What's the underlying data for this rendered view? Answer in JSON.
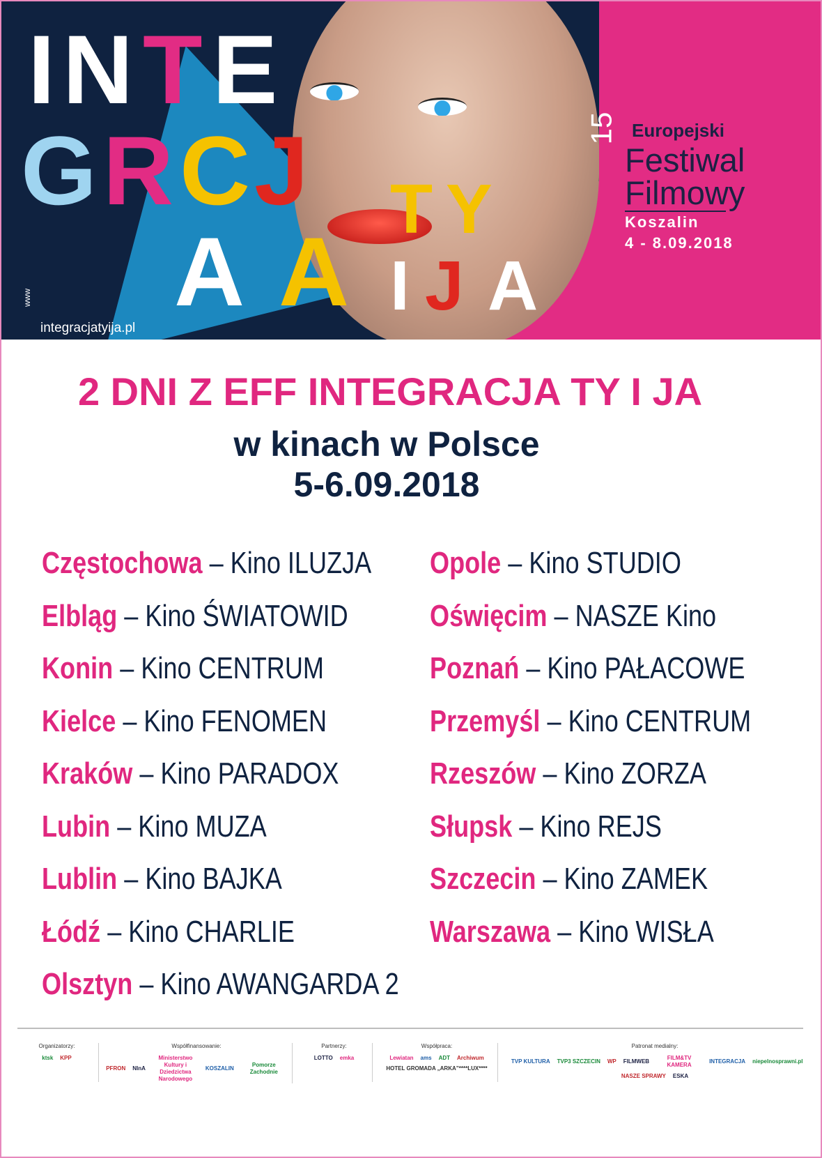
{
  "banner": {
    "letters": [
      "I",
      "N",
      "T",
      "E",
      "G",
      "R",
      "A",
      "C",
      "J",
      "A",
      "T",
      "Y",
      "I",
      "J",
      "A"
    ],
    "url_prefix": "www",
    "url": "integracjatyija.pl",
    "festival": {
      "edition": "15",
      "line1": "Europejski",
      "line2": "Festiwal",
      "line3": "Filmowy",
      "city": "Koszalin",
      "dates": "4 - 8.09.2018"
    },
    "colors": {
      "navy": "#0f2240",
      "pink": "#e22c84",
      "blue": "#1f9ad6",
      "yellow": "#f5c200",
      "red": "#e0271f"
    }
  },
  "title": "2 DNI Z EFF INTEGRACJA TY I JA",
  "subtitle": "w kinach w Polsce",
  "dates": "5-6.09.2018",
  "left_column": [
    {
      "city": "Częstochowa",
      "cinema": " – Kino ILUZJA"
    },
    {
      "city": "Elbląg",
      "cinema": " – Kino ŚWIATOWID"
    },
    {
      "city": "Konin",
      "cinema": " – Kino CENTRUM"
    },
    {
      "city": "Kielce",
      "cinema": " – Kino FENOMEN"
    },
    {
      "city": "Kraków",
      "cinema": " – Kino PARADOX"
    },
    {
      "city": "Lubin",
      "cinema": " – Kino MUZA"
    },
    {
      "city": "Lublin",
      "cinema": " – Kino BAJKA"
    },
    {
      "city": "Łódź",
      "cinema": " – Kino CHARLIE"
    },
    {
      "city": "Olsztyn",
      "cinema": " – Kino AWANGARDA 2"
    }
  ],
  "right_column": [
    {
      "city": "Opole",
      "cinema": " – Kino STUDIO"
    },
    {
      "city": "Oświęcim",
      "cinema": " – NASZE Kino"
    },
    {
      "city": "Poznań",
      "cinema": " – Kino PAŁACOWE"
    },
    {
      "city": "Przemyśl",
      "cinema": " – Kino CENTRUM"
    },
    {
      "city": "Rzeszów",
      "cinema": " – Kino ZORZA"
    },
    {
      "city": "Słupsk",
      "cinema": " – Kino REJS"
    },
    {
      "city": "Szczecin",
      "cinema": " – Kino ZAMEK"
    },
    {
      "city": "Warszawa",
      "cinema": " – Kino WISŁA"
    }
  ],
  "footer": {
    "groups": [
      {
        "label": "Organizatorzy:",
        "logos": [
          "ktsk",
          "KPP"
        ]
      },
      {
        "label": "Współfinansowanie:",
        "logos": [
          "PFRON",
          "NInA",
          "Ministerstwo Kultury i Dziedzictwa Narodowego",
          "KOSZALIN",
          "Pomorze Zachodnie"
        ]
      },
      {
        "label": "Partnerzy:",
        "logos": [
          "LOTTO",
          "emka"
        ]
      },
      {
        "label": "Współpraca:",
        "logos": [
          "Lewiatan",
          "ams",
          "ADT",
          "Archiwum"
        ],
        "extra": "HOTEL GROMADA „ARKA”****LUX****"
      },
      {
        "label": "Patronat medialny:",
        "logos": [
          "TVP KULTURA",
          "TVP3 SZCZECIN",
          "WP",
          "FILMWEB",
          "FILM&TV KAMERA",
          "INTEGRACJA",
          "niepelnosprawni.pl",
          "NASZE SPRAWY",
          "ESKA"
        ]
      }
    ]
  }
}
